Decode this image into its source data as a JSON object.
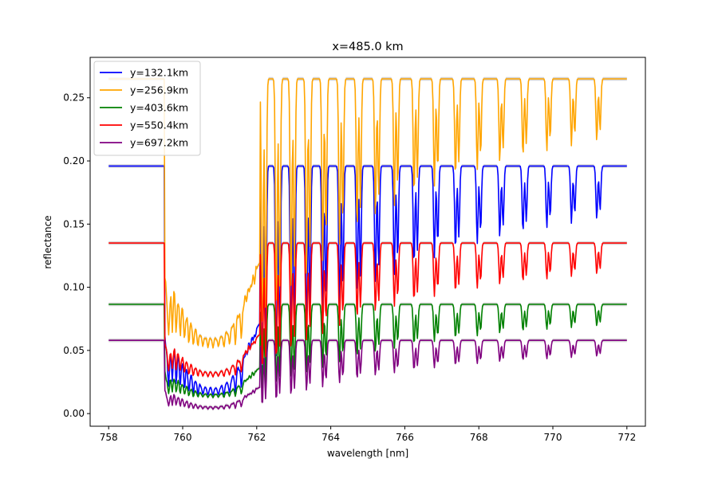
{
  "chart_data": {
    "type": "line",
    "title": "x=485.0 km",
    "xlabel": "wavelength [nm]",
    "ylabel": "reflectance",
    "xlim": [
      757.5,
      772.5
    ],
    "ylim": [
      -0.01,
      0.282
    ],
    "xticks": [
      758,
      760,
      762,
      764,
      766,
      768,
      770,
      772
    ],
    "yticks": [
      0.0,
      0.05,
      0.1,
      0.15,
      0.2,
      0.25
    ],
    "ytick_labels": [
      "0.00",
      "0.05",
      "0.10",
      "0.15",
      "0.20",
      "0.25"
    ],
    "grid": false,
    "legend_position": "upper-left",
    "uncertainty_band_color": "#c8c8c8",
    "x_range": [
      758,
      772
    ],
    "band_start": 759.5,
    "series": [
      {
        "name": "y=132.1km",
        "color": "#0000ff",
        "continuum": 0.196,
        "deep_floor": 0.012
      },
      {
        "name": "y=256.9km",
        "color": "#ffa500",
        "continuum": 0.265,
        "deep_floor": 0.05
      },
      {
        "name": "y=403.6km",
        "color": "#008000",
        "continuum": 0.0865,
        "deep_floor": 0.012
      },
      {
        "name": "y=550.4km",
        "color": "#ff0000",
        "continuum": 0.135,
        "deep_floor": 0.028
      },
      {
        "name": "y=697.2km",
        "color": "#800080",
        "continuum": 0.058,
        "deep_floor": 0.003
      }
    ]
  }
}
